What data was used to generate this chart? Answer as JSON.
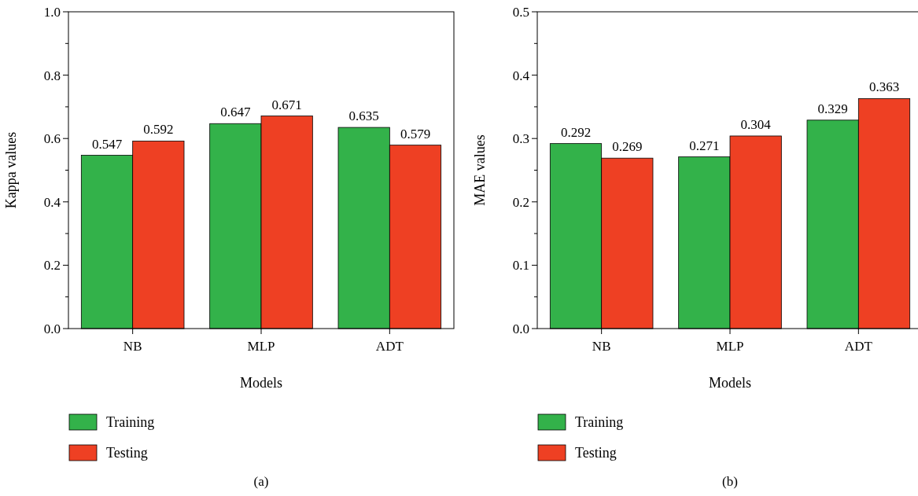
{
  "chart_data": [
    {
      "type": "bar",
      "categories": [
        "NB",
        "MLP",
        "ADT"
      ],
      "xlabel": "Models",
      "ylabel": "Kappa values",
      "series": [
        {
          "name": "Training",
          "color": "#33b24a",
          "values": [
            0.547,
            0.647,
            0.635
          ]
        },
        {
          "name": "Testing",
          "color": "#ee4023",
          "values": [
            0.592,
            0.671,
            0.579
          ]
        }
      ],
      "ylim": [
        0,
        1
      ],
      "yticks": [
        {
          "value": 0,
          "label": "0.0"
        },
        {
          "value": 0.1,
          "label": null
        },
        {
          "value": 0.2,
          "label": "0.2"
        },
        {
          "value": 0.3,
          "label": null
        },
        {
          "value": 0.4,
          "label": "0.4"
        },
        {
          "value": 0.5,
          "label": null
        },
        {
          "value": 0.6,
          "label": "0.6"
        },
        {
          "value": 0.7,
          "label": null
        },
        {
          "value": 0.8,
          "label": "0.8"
        },
        {
          "value": 0.9,
          "label": null
        },
        {
          "value": 1,
          "label": "1.0"
        }
      ],
      "data_labels": true,
      "legend": "bottom",
      "grid": false,
      "annotations": [
        "(a)"
      ]
    },
    {
      "type": "bar",
      "categories": [
        "NB",
        "MLP",
        "ADT"
      ],
      "xlabel": "Models",
      "ylabel": "MAE values",
      "series": [
        {
          "name": "Training",
          "color": "#33b24a",
          "values": [
            0.292,
            0.271,
            0.329
          ]
        },
        {
          "name": "Testing",
          "color": "#ee4023",
          "values": [
            0.269,
            0.304,
            0.363
          ]
        }
      ],
      "ylim": [
        0,
        0.5
      ],
      "yticks": [
        {
          "value": 0,
          "label": "0.0"
        },
        {
          "value": 0.05,
          "label": null
        },
        {
          "value": 0.1,
          "label": "0.1"
        },
        {
          "value": 0.15,
          "label": null
        },
        {
          "value": 0.2,
          "label": "0.2"
        },
        {
          "value": 0.25,
          "label": null
        },
        {
          "value": 0.3,
          "label": "0.3"
        },
        {
          "value": 0.35,
          "label": null
        },
        {
          "value": 0.4,
          "label": "0.4"
        },
        {
          "value": 0.45,
          "label": null
        },
        {
          "value": 0.5,
          "label": "0.5"
        }
      ],
      "data_labels": true,
      "legend": "bottom",
      "grid": false,
      "annotations": [
        "(b)"
      ]
    }
  ]
}
